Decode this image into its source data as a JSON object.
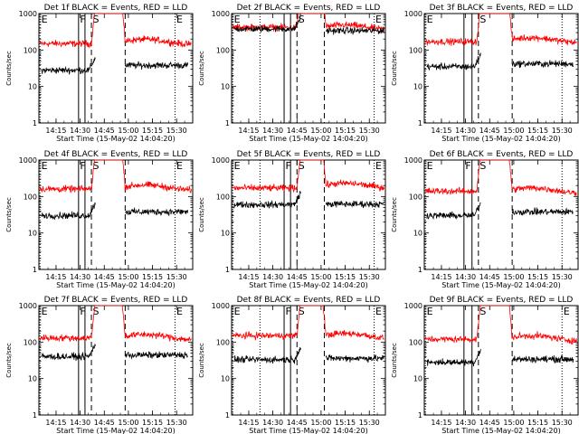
{
  "chart_data": {
    "type": "line",
    "start_label": "Start Time (15-May-02 14:04:20)",
    "xlim": [
      "14:04:20",
      "15:40:00"
    ],
    "x_ticks": [
      "14:15",
      "14:30",
      "14:45",
      "15:00",
      "15:15",
      "15:30"
    ],
    "ylabel": "Counts/sec",
    "y_scale": "log",
    "ylim": [
      1,
      1000
    ],
    "y_ticks": [
      "1",
      "10",
      "100",
      "1000"
    ],
    "colors": {
      "events": "#000000",
      "lld": "#ff0000"
    },
    "panels": [
      {
        "title": "Det 1f BLACK = Events, RED = LLD",
        "markers": [
          {
            "label": "E",
            "time": "14:05",
            "style": "dotted"
          },
          {
            "label": "F",
            "time": "14:29",
            "style": "solid"
          },
          {
            "label": "",
            "time": "14:33",
            "style": "solid"
          },
          {
            "label": "S",
            "time": "14:37",
            "style": "dashed"
          },
          {
            "label": "",
            "time": "14:58",
            "style": "dashed"
          },
          {
            "label": "E",
            "time": "15:29",
            "style": "dotted"
          }
        ],
        "lld": {
          "pre": 150,
          "post": 170,
          "eclipse_start": "14:40",
          "eclipse_end": "14:56"
        },
        "events": {
          "pre": 28,
          "post": 38,
          "end": "15:37"
        }
      },
      {
        "title": "Det 2f BLACK = Events, RED = LLD",
        "markers": [
          {
            "label": "E",
            "time": "14:05",
            "style": "dotted"
          },
          {
            "label": "",
            "time": "14:22",
            "style": "dotted"
          },
          {
            "label": "",
            "time": "14:37",
            "style": "solid"
          },
          {
            "label": "",
            "time": "14:41",
            "style": "solid"
          },
          {
            "label": "S",
            "time": "14:45",
            "style": "dashed"
          },
          {
            "label": "",
            "time": "15:02",
            "style": "dashed"
          },
          {
            "label": "E",
            "time": "15:33",
            "style": "dotted"
          }
        ],
        "lld": {
          "pre": 420,
          "post": 420,
          "eclipse_start": "14:48",
          "eclipse_end": "15:01"
        },
        "events": {
          "pre": 380,
          "post": 340,
          "end": "15:39"
        }
      },
      {
        "title": "Det 3f BLACK = Events, RED = LLD",
        "markers": [
          {
            "label": "E",
            "time": "14:05",
            "style": "dotted"
          },
          {
            "label": "",
            "time": "14:29",
            "style": "solid"
          },
          {
            "label": "",
            "time": "14:34",
            "style": "solid"
          },
          {
            "label": "S",
            "time": "14:38",
            "style": "dashed"
          },
          {
            "label": "",
            "time": "14:59",
            "style": "dashed"
          },
          {
            "label": "",
            "time": "15:30",
            "style": "dotted"
          }
        ],
        "lld": {
          "pre": 170,
          "post": 190,
          "eclipse_start": "14:40",
          "eclipse_end": "14:57"
        },
        "events": {
          "pre": 35,
          "post": 42,
          "end": "15:37"
        }
      },
      {
        "title": "Det 4f BLACK = Events, RED = LLD",
        "markers": [
          {
            "label": "E",
            "time": "14:05",
            "style": "dotted"
          },
          {
            "label": "F",
            "time": "14:29",
            "style": "solid"
          },
          {
            "label": "",
            "time": "14:33",
            "style": "solid"
          },
          {
            "label": "S",
            "time": "14:37",
            "style": "dashed"
          },
          {
            "label": "",
            "time": "14:58",
            "style": "dashed"
          },
          {
            "label": "E",
            "time": "15:29",
            "style": "dotted"
          }
        ],
        "lld": {
          "pre": 160,
          "post": 180,
          "eclipse_start": "14:40",
          "eclipse_end": "14:56"
        },
        "events": {
          "pre": 30,
          "post": 38,
          "end": "15:37"
        }
      },
      {
        "title": "Det 5f BLACK = Events, RED = LLD",
        "markers": [
          {
            "label": "E",
            "time": "14:05",
            "style": "dotted"
          },
          {
            "label": "",
            "time": "14:22",
            "style": "dotted"
          },
          {
            "label": "F",
            "time": "14:37",
            "style": "solid"
          },
          {
            "label": "",
            "time": "14:41",
            "style": "solid"
          },
          {
            "label": "S",
            "time": "14:45",
            "style": "dashed"
          },
          {
            "label": "",
            "time": "15:02",
            "style": "dashed"
          },
          {
            "label": "E",
            "time": "15:33",
            "style": "dotted"
          }
        ],
        "lld": {
          "pre": 170,
          "post": 200,
          "eclipse_start": "14:48",
          "eclipse_end": "15:01"
        },
        "events": {
          "pre": 60,
          "post": 62,
          "end": "15:39"
        }
      },
      {
        "title": "Det 6f BLACK = Events, RED = LLD",
        "markers": [
          {
            "label": "E",
            "time": "14:05",
            "style": "dotted"
          },
          {
            "label": "F",
            "time": "14:29",
            "style": "solid"
          },
          {
            "label": "",
            "time": "14:34",
            "style": "solid"
          },
          {
            "label": "S",
            "time": "14:38",
            "style": "dashed"
          },
          {
            "label": "",
            "time": "14:59",
            "style": "dashed"
          },
          {
            "label": "",
            "time": "15:30",
            "style": "dotted"
          }
        ],
        "lld": {
          "pre": 140,
          "post": 150,
          "eclipse_start": "14:40",
          "eclipse_end": "14:57"
        },
        "events": {
          "pre": 30,
          "post": 38,
          "end": "15:37"
        }
      },
      {
        "title": "Det 7f BLACK = Events, RED = LLD",
        "markers": [
          {
            "label": "E",
            "time": "14:05",
            "style": "dotted"
          },
          {
            "label": "F",
            "time": "14:29",
            "style": "solid"
          },
          {
            "label": "",
            "time": "14:33",
            "style": "solid"
          },
          {
            "label": "S",
            "time": "14:37",
            "style": "dashed"
          },
          {
            "label": "",
            "time": "14:58",
            "style": "dashed"
          },
          {
            "label": "E",
            "time": "15:29",
            "style": "dotted"
          }
        ],
        "lld": {
          "pre": 130,
          "post": 140,
          "eclipse_start": "14:40",
          "eclipse_end": "14:56"
        },
        "events": {
          "pre": 40,
          "post": 44,
          "end": "15:37"
        }
      },
      {
        "title": "Det 8f BLACK = Events, RED = LLD",
        "markers": [
          {
            "label": "E",
            "time": "14:05",
            "style": "dotted"
          },
          {
            "label": "",
            "time": "14:22",
            "style": "dotted"
          },
          {
            "label": "F",
            "time": "14:37",
            "style": "solid"
          },
          {
            "label": "",
            "time": "14:41",
            "style": "solid"
          },
          {
            "label": "S",
            "time": "14:45",
            "style": "dashed"
          },
          {
            "label": "",
            "time": "15:02",
            "style": "dashed"
          },
          {
            "label": "E",
            "time": "15:33",
            "style": "dotted"
          }
        ],
        "lld": {
          "pre": 150,
          "post": 150,
          "eclipse_start": "14:48",
          "eclipse_end": "15:01"
        },
        "events": {
          "pre": 33,
          "post": 36,
          "end": "15:39"
        }
      },
      {
        "title": "Det 9f BLACK = Events, RED = LLD",
        "markers": [
          {
            "label": "E",
            "time": "14:05",
            "style": "dotted"
          },
          {
            "label": "",
            "time": "14:29",
            "style": "solid"
          },
          {
            "label": "",
            "time": "14:34",
            "style": "solid"
          },
          {
            "label": "S",
            "time": "14:38",
            "style": "dashed"
          },
          {
            "label": "",
            "time": "14:59",
            "style": "dashed"
          },
          {
            "label": "E",
            "time": "15:30",
            "style": "dotted"
          }
        ],
        "lld": {
          "pre": 120,
          "post": 130,
          "eclipse_start": "14:40",
          "eclipse_end": "14:57"
        },
        "events": {
          "pre": 28,
          "post": 34,
          "end": "15:37"
        }
      }
    ]
  }
}
